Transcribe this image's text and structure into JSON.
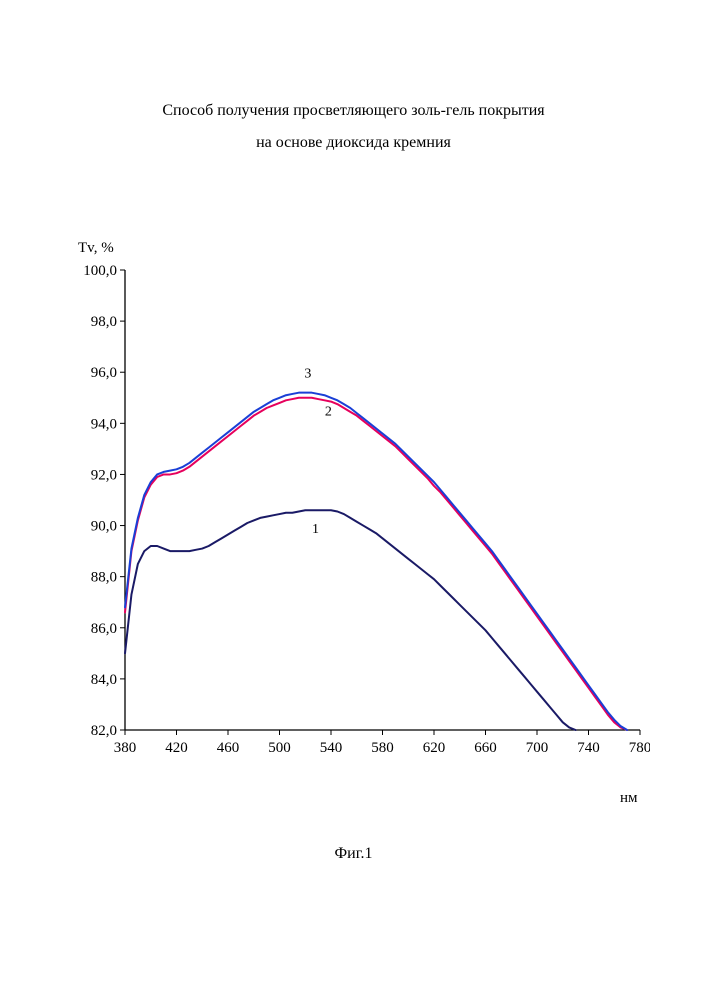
{
  "title_line1": "Способ получения просветляющего золь-гель покрытия",
  "title_line2": "на основе диоксида кремния",
  "caption": "Фиг.1",
  "y_axis_title": "Tv, %",
  "x_axis_title": "нм",
  "chart": {
    "type": "line",
    "background_color": "#ffffff",
    "axis_color": "#000000",
    "tick_font_size": 15,
    "series_label_font_size": 14,
    "line_width": 2,
    "x": {
      "min": 380,
      "max": 780,
      "tick_step": 40,
      "ticks": [
        380,
        420,
        460,
        500,
        540,
        580,
        620,
        660,
        700,
        740,
        780
      ]
    },
    "y": {
      "min": 82.0,
      "max": 100.0,
      "tick_step": 2.0,
      "ticks": [
        82.0,
        84.0,
        86.0,
        88.0,
        90.0,
        92.0,
        94.0,
        96.0,
        98.0,
        100.0
      ],
      "tick_format": "comma-decimal-1"
    },
    "series": [
      {
        "name": "1",
        "color": "#1a1a66",
        "label_x": 528,
        "label_y": 89.7,
        "points": [
          [
            380,
            85.0
          ],
          [
            385,
            87.3
          ],
          [
            390,
            88.5
          ],
          [
            395,
            89.0
          ],
          [
            400,
            89.2
          ],
          [
            405,
            89.2
          ],
          [
            410,
            89.1
          ],
          [
            415,
            89.0
          ],
          [
            420,
            89.0
          ],
          [
            425,
            89.0
          ],
          [
            430,
            89.0
          ],
          [
            435,
            89.05
          ],
          [
            440,
            89.1
          ],
          [
            445,
            89.2
          ],
          [
            450,
            89.35
          ],
          [
            455,
            89.5
          ],
          [
            460,
            89.65
          ],
          [
            465,
            89.8
          ],
          [
            470,
            89.95
          ],
          [
            475,
            90.1
          ],
          [
            480,
            90.2
          ],
          [
            485,
            90.3
          ],
          [
            490,
            90.35
          ],
          [
            495,
            90.4
          ],
          [
            500,
            90.45
          ],
          [
            505,
            90.5
          ],
          [
            510,
            90.5
          ],
          [
            515,
            90.55
          ],
          [
            520,
            90.6
          ],
          [
            525,
            90.6
          ],
          [
            530,
            90.6
          ],
          [
            535,
            90.6
          ],
          [
            540,
            90.6
          ],
          [
            545,
            90.55
          ],
          [
            550,
            90.45
          ],
          [
            555,
            90.3
          ],
          [
            560,
            90.15
          ],
          [
            565,
            90.0
          ],
          [
            570,
            89.85
          ],
          [
            575,
            89.7
          ],
          [
            580,
            89.5
          ],
          [
            585,
            89.3
          ],
          [
            590,
            89.1
          ],
          [
            595,
            88.9
          ],
          [
            600,
            88.7
          ],
          [
            605,
            88.5
          ],
          [
            610,
            88.3
          ],
          [
            615,
            88.1
          ],
          [
            620,
            87.9
          ],
          [
            625,
            87.65
          ],
          [
            630,
            87.4
          ],
          [
            635,
            87.15
          ],
          [
            640,
            86.9
          ],
          [
            645,
            86.65
          ],
          [
            650,
            86.4
          ],
          [
            655,
            86.15
          ],
          [
            660,
            85.9
          ],
          [
            665,
            85.6
          ],
          [
            670,
            85.3
          ],
          [
            675,
            85.0
          ],
          [
            680,
            84.7
          ],
          [
            685,
            84.4
          ],
          [
            690,
            84.1
          ],
          [
            695,
            83.8
          ],
          [
            700,
            83.5
          ],
          [
            705,
            83.2
          ],
          [
            710,
            82.9
          ],
          [
            715,
            82.6
          ],
          [
            720,
            82.3
          ],
          [
            725,
            82.1
          ],
          [
            730,
            82.0
          ]
        ]
      },
      {
        "name": "2",
        "color": "#e6005c",
        "label_x": 538,
        "label_y": 94.3,
        "points": [
          [
            380,
            86.6
          ],
          [
            385,
            89.0
          ],
          [
            390,
            90.2
          ],
          [
            395,
            91.1
          ],
          [
            400,
            91.6
          ],
          [
            405,
            91.9
          ],
          [
            410,
            92.0
          ],
          [
            415,
            92.0
          ],
          [
            420,
            92.05
          ],
          [
            425,
            92.15
          ],
          [
            430,
            92.3
          ],
          [
            435,
            92.5
          ],
          [
            440,
            92.7
          ],
          [
            445,
            92.9
          ],
          [
            450,
            93.1
          ],
          [
            455,
            93.3
          ],
          [
            460,
            93.5
          ],
          [
            465,
            93.7
          ],
          [
            470,
            93.9
          ],
          [
            475,
            94.1
          ],
          [
            480,
            94.3
          ],
          [
            485,
            94.45
          ],
          [
            490,
            94.6
          ],
          [
            495,
            94.7
          ],
          [
            500,
            94.8
          ],
          [
            505,
            94.9
          ],
          [
            510,
            94.95
          ],
          [
            515,
            95.0
          ],
          [
            520,
            95.0
          ],
          [
            525,
            95.0
          ],
          [
            530,
            94.95
          ],
          [
            535,
            94.9
          ],
          [
            540,
            94.85
          ],
          [
            545,
            94.75
          ],
          [
            550,
            94.6
          ],
          [
            555,
            94.45
          ],
          [
            560,
            94.3
          ],
          [
            565,
            94.1
          ],
          [
            570,
            93.9
          ],
          [
            575,
            93.7
          ],
          [
            580,
            93.5
          ],
          [
            585,
            93.3
          ],
          [
            590,
            93.1
          ],
          [
            595,
            92.85
          ],
          [
            600,
            92.6
          ],
          [
            605,
            92.35
          ],
          [
            610,
            92.1
          ],
          [
            615,
            91.85
          ],
          [
            620,
            91.55
          ],
          [
            625,
            91.3
          ],
          [
            630,
            91.0
          ],
          [
            635,
            90.7
          ],
          [
            640,
            90.4
          ],
          [
            645,
            90.1
          ],
          [
            650,
            89.8
          ],
          [
            655,
            89.5
          ],
          [
            660,
            89.2
          ],
          [
            665,
            88.9
          ],
          [
            670,
            88.55
          ],
          [
            675,
            88.2
          ],
          [
            680,
            87.85
          ],
          [
            685,
            87.5
          ],
          [
            690,
            87.15
          ],
          [
            695,
            86.8
          ],
          [
            700,
            86.45
          ],
          [
            705,
            86.1
          ],
          [
            710,
            85.75
          ],
          [
            715,
            85.4
          ],
          [
            720,
            85.05
          ],
          [
            725,
            84.7
          ],
          [
            730,
            84.35
          ],
          [
            735,
            84.0
          ],
          [
            740,
            83.65
          ],
          [
            745,
            83.3
          ],
          [
            750,
            82.95
          ],
          [
            755,
            82.6
          ],
          [
            760,
            82.3
          ],
          [
            765,
            82.1
          ],
          [
            770,
            82.0
          ]
        ]
      },
      {
        "name": "3",
        "color": "#1a3fd6",
        "label_x": 522,
        "label_y": 95.8,
        "points": [
          [
            380,
            86.8
          ],
          [
            385,
            89.1
          ],
          [
            390,
            90.3
          ],
          [
            395,
            91.2
          ],
          [
            400,
            91.7
          ],
          [
            405,
            92.0
          ],
          [
            410,
            92.1
          ],
          [
            415,
            92.15
          ],
          [
            420,
            92.2
          ],
          [
            425,
            92.3
          ],
          [
            430,
            92.45
          ],
          [
            435,
            92.65
          ],
          [
            440,
            92.85
          ],
          [
            445,
            93.05
          ],
          [
            450,
            93.25
          ],
          [
            455,
            93.45
          ],
          [
            460,
            93.65
          ],
          [
            465,
            93.85
          ],
          [
            470,
            94.05
          ],
          [
            475,
            94.25
          ],
          [
            480,
            94.45
          ],
          [
            485,
            94.6
          ],
          [
            490,
            94.75
          ],
          [
            495,
            94.9
          ],
          [
            500,
            95.0
          ],
          [
            505,
            95.1
          ],
          [
            510,
            95.15
          ],
          [
            515,
            95.2
          ],
          [
            520,
            95.2
          ],
          [
            525,
            95.2
          ],
          [
            530,
            95.15
          ],
          [
            535,
            95.1
          ],
          [
            540,
            95.0
          ],
          [
            545,
            94.9
          ],
          [
            550,
            94.75
          ],
          [
            555,
            94.6
          ],
          [
            560,
            94.4
          ],
          [
            565,
            94.2
          ],
          [
            570,
            94.0
          ],
          [
            575,
            93.8
          ],
          [
            580,
            93.6
          ],
          [
            585,
            93.4
          ],
          [
            590,
            93.2
          ],
          [
            595,
            92.95
          ],
          [
            600,
            92.7
          ],
          [
            605,
            92.45
          ],
          [
            610,
            92.2
          ],
          [
            615,
            91.95
          ],
          [
            620,
            91.7
          ],
          [
            625,
            91.4
          ],
          [
            630,
            91.1
          ],
          [
            635,
            90.8
          ],
          [
            640,
            90.5
          ],
          [
            645,
            90.2
          ],
          [
            650,
            89.9
          ],
          [
            655,
            89.6
          ],
          [
            660,
            89.3
          ],
          [
            665,
            89.0
          ],
          [
            670,
            88.65
          ],
          [
            675,
            88.3
          ],
          [
            680,
            87.95
          ],
          [
            685,
            87.6
          ],
          [
            690,
            87.25
          ],
          [
            695,
            86.9
          ],
          [
            700,
            86.55
          ],
          [
            705,
            86.2
          ],
          [
            710,
            85.85
          ],
          [
            715,
            85.5
          ],
          [
            720,
            85.15
          ],
          [
            725,
            84.8
          ],
          [
            730,
            84.45
          ],
          [
            735,
            84.1
          ],
          [
            740,
            83.75
          ],
          [
            745,
            83.4
          ],
          [
            750,
            83.05
          ],
          [
            755,
            82.7
          ],
          [
            760,
            82.4
          ],
          [
            765,
            82.15
          ],
          [
            770,
            82.0
          ]
        ]
      }
    ]
  }
}
